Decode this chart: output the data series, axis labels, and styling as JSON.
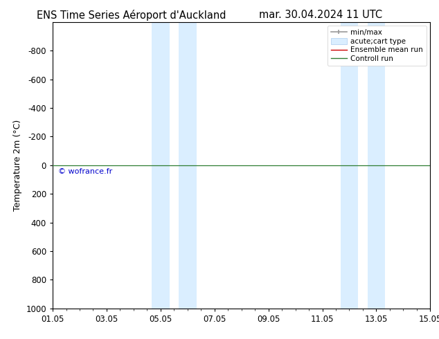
{
  "title_left": "ENS Time Series Aéroport d'Auckland",
  "title_right": "mar. 30.04.2024 11 UTC",
  "ylabel": "Temperature 2m (°C)",
  "watermark": "© wofrance.fr",
  "ylim_bottom": 1000,
  "ylim_top": -1000,
  "x_ticks": [
    "01.05",
    "03.05",
    "05.05",
    "07.05",
    "09.05",
    "11.05",
    "13.05",
    "15.05"
  ],
  "x_tick_positions": [
    0,
    2,
    4,
    6,
    8,
    10,
    12,
    14
  ],
  "yticks": [
    -800,
    -600,
    -400,
    -200,
    0,
    200,
    400,
    600,
    800,
    1000
  ],
  "shaded_regions": [
    {
      "xmin": 3.67,
      "xmax": 4.33,
      "color": "#daeeff"
    },
    {
      "xmin": 4.67,
      "xmax": 5.33,
      "color": "#daeeff"
    },
    {
      "xmin": 10.67,
      "xmax": 11.33,
      "color": "#daeeff"
    },
    {
      "xmin": 11.67,
      "xmax": 12.33,
      "color": "#daeeff"
    }
  ],
  "horizontal_line_y": 0,
  "control_run_color": "#2e7d32",
  "ensemble_mean_color": "#cc0000",
  "minmax_color": "#999999",
  "background_color": "#ffffff",
  "plot_bg_color": "#ffffff",
  "legend_entries": [
    "min/max",
    "acute;cart type",
    "Ensemble mean run",
    "Controll run"
  ],
  "watermark_color": "#0000cc",
  "title_fontsize": 10.5,
  "label_fontsize": 9,
  "tick_fontsize": 8.5,
  "watermark_fontsize": 8,
  "legend_fontsize": 7.5
}
